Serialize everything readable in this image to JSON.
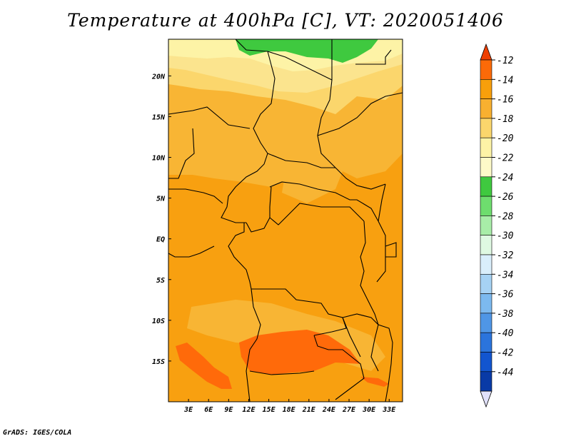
{
  "title": "Temperature at 400hPa [C], VT: 2020051406",
  "credit": "GrADS: IGES/COLA",
  "map": {
    "lon_range": [
      0,
      35
    ],
    "lat_range": [
      -20,
      24.5
    ],
    "x_ticks": [
      "3E",
      "6E",
      "9E",
      "12E",
      "15E",
      "18E",
      "21E",
      "24E",
      "27E",
      "30E",
      "33E"
    ],
    "y_ticks": [
      "20N",
      "15N",
      "10N",
      "5N",
      "EQ",
      "5S",
      "10S",
      "15S"
    ]
  },
  "colorbar": {
    "levels": [
      "-12",
      "-14",
      "-16",
      "-18",
      "-20",
      "-22",
      "-24",
      "-26",
      "-28",
      "-30",
      "-32",
      "-34",
      "-36",
      "-38",
      "-40",
      "-42",
      "-44"
    ],
    "colors": [
      "#ee3f02",
      "#fb6a08",
      "#f89f0b",
      "#f8b030",
      "#fbd66c",
      "#fdf3a6",
      "#fdfac8",
      "#3fc93f",
      "#6edd6e",
      "#a8eda8",
      "#dff9e2",
      "#d9eefb",
      "#a6d2f4",
      "#7cb9ef",
      "#4f96e6",
      "#2b74dc",
      "#1255cf",
      "#093aa6",
      "#0b2575"
    ],
    "low_end_color": "#e1e1fb"
  },
  "field_colors": {
    "t14": "#f8a010",
    "t15": "#f8b534",
    "t17": "#fbd66c",
    "t19": "#fbe48e",
    "t21": "#fdf3a6",
    "t23": "#3fc93f",
    "t13": "#ff6a0a"
  }
}
